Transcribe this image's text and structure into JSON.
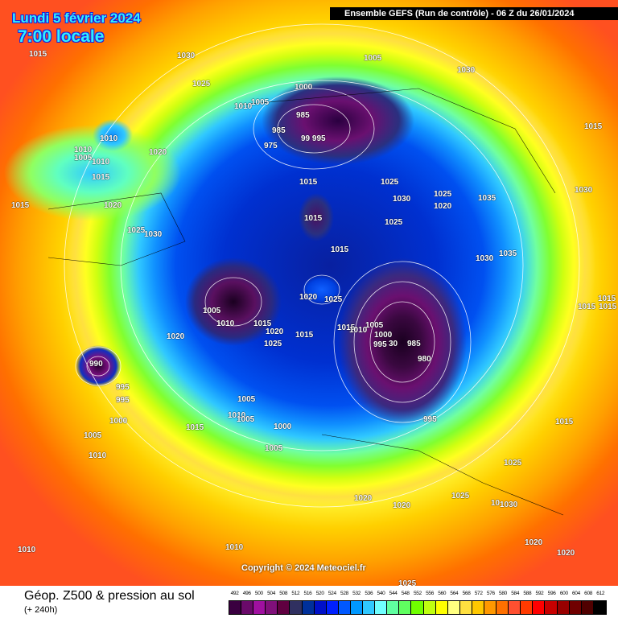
{
  "header": {
    "date": "Lundi 5 février 2024",
    "time": "7:00 locale",
    "run_info": "Ensemble GEFS  (Run de contrôle)  -  06 Z du 26/01/2024"
  },
  "map": {
    "pressure_labels": [
      "1015",
      "1030",
      "1025",
      "1005",
      "1030",
      "1000",
      "1010",
      "1005",
      "985",
      "985",
      "975",
      "99 995",
      "1010",
      "1010",
      "1005",
      "1010",
      "1020",
      "1015",
      "1015",
      "1020",
      "1015",
      "1015",
      "1025",
      "1030",
      "1025",
      "1020",
      "1035",
      "1030",
      "1015",
      "1025",
      "1025",
      "1030",
      "1015",
      "1030",
      "1035",
      "1015",
      "1015",
      "1015",
      "1005",
      "1020",
      "1025",
      "1010",
      "1015",
      "1020",
      "1025",
      "1015",
      "1015",
      "1010",
      "1005",
      "1000",
      "995",
      "30",
      "985",
      "980",
      "1020",
      "990",
      "995",
      "995",
      "1005",
      "1010",
      "1005",
      "1000",
      "1015",
      "1000",
      "995",
      "1015",
      "1005",
      "1005",
      "1010",
      "1025",
      "1020",
      "1020",
      "1025",
      "1030",
      "10",
      "1020",
      "1020",
      "1010",
      "1010",
      "1025"
    ],
    "copyright": "Copyright © 2024 Meteociel.fr"
  },
  "footer": {
    "title": "Géop. Z500 & pression au sol",
    "subtitle": "(+ 240h)"
  },
  "legend": {
    "labels": [
      "492",
      "496",
      "500",
      "504",
      "508",
      "512",
      "516",
      "520",
      "524",
      "528",
      "532",
      "536",
      "540",
      "544",
      "548",
      "552",
      "556",
      "560",
      "564",
      "568",
      "572",
      "576",
      "580",
      "584",
      "588",
      "592",
      "596",
      "600",
      "604",
      "608",
      "612"
    ],
    "colors": [
      "#3a0040",
      "#6a0a6a",
      "#a010a0",
      "#80107a",
      "#600040",
      "#303060",
      "#00309a",
      "#0010c8",
      "#0020ff",
      "#0058ff",
      "#0098ff",
      "#30c8ff",
      "#70ffff",
      "#60ffa0",
      "#60ff60",
      "#70ff00",
      "#c0ff10",
      "#ffff00",
      "#ffff80",
      "#ffe040",
      "#ffc800",
      "#ff9800",
      "#ff7000",
      "#ff5030",
      "#ff3a00",
      "#ff0000",
      "#c80000",
      "#980000",
      "#700000",
      "#500000",
      "#000000"
    ]
  }
}
